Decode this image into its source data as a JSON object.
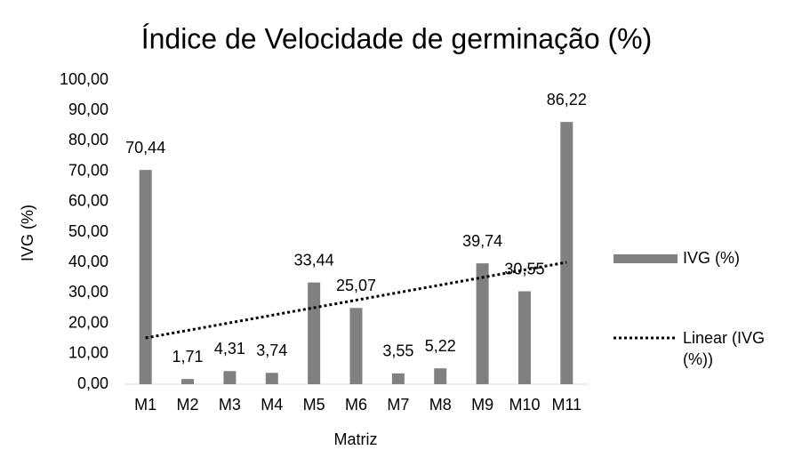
{
  "chart_data": {
    "type": "bar",
    "title": "Índice de Velocidade de germinação (%)",
    "x_label": "Matriz",
    "y_label": "IVG (%)",
    "categories": [
      "M1",
      "M2",
      "M3",
      "M4",
      "M5",
      "M6",
      "M7",
      "M8",
      "M9",
      "M10",
      "M11"
    ],
    "series": [
      {
        "name": "IVG (%)",
        "color": "#808080",
        "values": [
          70.44,
          1.71,
          4.31,
          3.74,
          33.44,
          25.07,
          3.55,
          5.22,
          39.74,
          30.55,
          86.22
        ],
        "value_labels": [
          "70,44",
          "1,71",
          "4,31",
          "3,74",
          "33,44",
          "25,07",
          "3,55",
          "5,22",
          "39,74",
          "30,55",
          "86,22"
        ]
      }
    ],
    "trendline": {
      "name": "Linear (IVG (%))",
      "kind": "linear",
      "color": "#000000"
    },
    "ylim": [
      0,
      100
    ],
    "yticks": [
      {
        "value": 0,
        "label": "0,00"
      },
      {
        "value": 10,
        "label": "10,00"
      },
      {
        "value": 20,
        "label": "20,00"
      },
      {
        "value": 30,
        "label": "30,00"
      },
      {
        "value": 40,
        "label": "40,00"
      },
      {
        "value": 50,
        "label": "50,00"
      },
      {
        "value": 60,
        "label": "60,00"
      },
      {
        "value": 70,
        "label": "70,00"
      },
      {
        "value": 80,
        "label": "80,00"
      },
      {
        "value": 90,
        "label": "90,00"
      },
      {
        "value": 100,
        "label": "100,00"
      }
    ],
    "grid": false,
    "legend": "right"
  }
}
